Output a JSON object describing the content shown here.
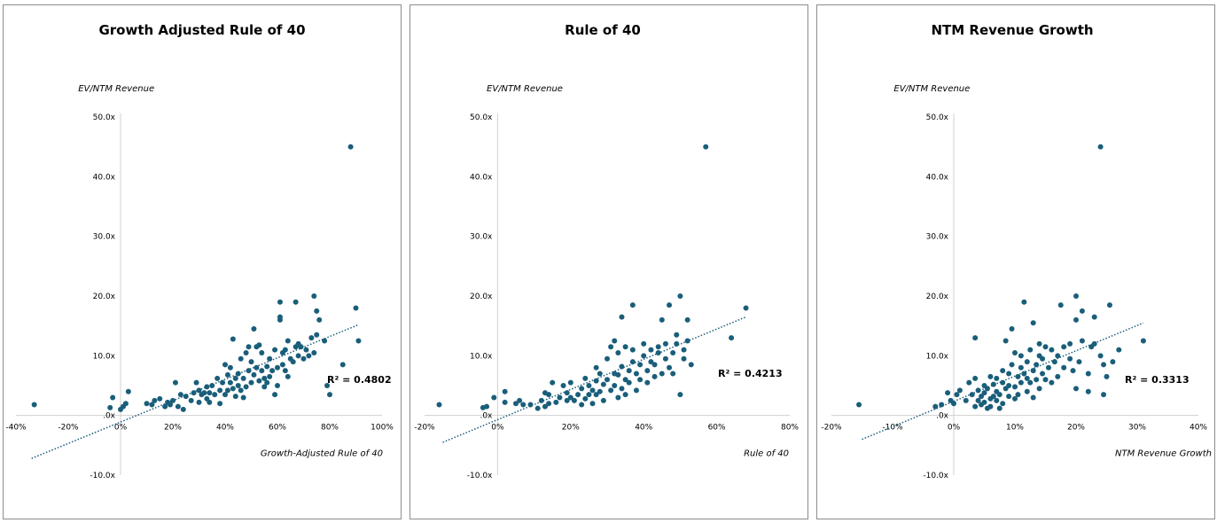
{
  "chart_data": [
    {
      "type": "scatter",
      "title": "Growth Adjusted Rule of 40",
      "ylabel": "EV/NTM Revenue",
      "xlabel": "Growth-Adjusted Rule of 40",
      "xlim": [
        -40,
        100
      ],
      "ylim": [
        -10,
        50
      ],
      "xticks": [
        "-40%",
        "-20%",
        "0%",
        "20%",
        "40%",
        "60%",
        "80%",
        "100%"
      ],
      "yticks": [
        "-10.0x",
        ".0x",
        "10.0x",
        "20.0x",
        "30.0x",
        "40.0x",
        "50.0x"
      ],
      "r2_label": "R² = 0.4802",
      "trendline": {
        "x1": -34,
        "y1": -7.2,
        "x2": 91,
        "y2": 15.2
      },
      "marker_color": "#1a5e7a",
      "points": [
        [
          -33,
          1.8
        ],
        [
          -4,
          1.3
        ],
        [
          -3,
          3
        ],
        [
          0,
          1
        ],
        [
          1,
          1.5
        ],
        [
          2,
          2
        ],
        [
          3,
          4
        ],
        [
          10,
          2
        ],
        [
          12,
          1.8
        ],
        [
          13,
          2.5
        ],
        [
          15,
          2.8
        ],
        [
          17,
          1.5
        ],
        [
          18,
          2.2
        ],
        [
          19,
          1.8
        ],
        [
          20,
          2.5
        ],
        [
          21,
          5.5
        ],
        [
          22,
          1.5
        ],
        [
          23,
          3.5
        ],
        [
          24,
          1
        ],
        [
          25,
          3.2
        ],
        [
          27,
          2.5
        ],
        [
          28,
          3.8
        ],
        [
          29,
          5.5
        ],
        [
          30,
          2.2
        ],
        [
          30,
          4.2
        ],
        [
          31,
          3.5
        ],
        [
          32,
          3.8
        ],
        [
          33,
          2.8
        ],
        [
          33,
          4.8
        ],
        [
          34,
          2.2
        ],
        [
          34,
          3.8
        ],
        [
          35,
          5
        ],
        [
          36,
          3.5
        ],
        [
          37,
          6.2
        ],
        [
          38,
          2
        ],
        [
          38,
          4.2
        ],
        [
          39,
          5.5
        ],
        [
          40,
          8.5
        ],
        [
          40,
          3.5
        ],
        [
          41,
          4.2
        ],
        [
          41,
          6.8
        ],
        [
          42,
          5.5
        ],
        [
          42,
          8
        ],
        [
          43,
          12.8
        ],
        [
          43,
          4.5
        ],
        [
          44,
          6.2
        ],
        [
          44,
          3.2
        ],
        [
          45,
          5
        ],
        [
          45,
          7
        ],
        [
          46,
          9.5
        ],
        [
          46,
          4.2
        ],
        [
          47,
          3
        ],
        [
          47,
          6.2
        ],
        [
          48,
          10.5
        ],
        [
          48,
          4.8
        ],
        [
          49,
          7.5
        ],
        [
          49,
          11.5
        ],
        [
          50,
          5.5
        ],
        [
          50,
          9
        ],
        [
          51,
          14.5
        ],
        [
          51,
          6.8
        ],
        [
          52,
          8
        ],
        [
          52,
          11.5
        ],
        [
          53,
          11.8
        ],
        [
          53,
          5.8
        ],
        [
          54,
          7.5
        ],
        [
          54,
          10.5
        ],
        [
          55,
          4.8
        ],
        [
          55,
          6.2
        ],
        [
          56,
          5.5
        ],
        [
          56,
          8.2
        ],
        [
          57,
          9.5
        ],
        [
          57,
          6.5
        ],
        [
          58,
          7.5
        ],
        [
          59,
          11
        ],
        [
          59,
          3.5
        ],
        [
          60,
          5
        ],
        [
          60,
          8
        ],
        [
          61,
          16
        ],
        [
          61,
          19
        ],
        [
          61,
          16.5
        ],
        [
          62,
          10.5
        ],
        [
          62,
          8.5
        ],
        [
          63,
          7.5
        ],
        [
          63,
          11
        ],
        [
          64,
          12.5
        ],
        [
          64,
          6.5
        ],
        [
          65,
          9.5
        ],
        [
          66,
          9
        ],
        [
          67,
          11.5
        ],
        [
          67,
          19
        ],
        [
          68,
          10
        ],
        [
          68,
          12
        ],
        [
          69,
          11.5
        ],
        [
          70,
          9.5
        ],
        [
          71,
          11
        ],
        [
          72,
          10
        ],
        [
          73,
          13
        ],
        [
          74,
          10.5
        ],
        [
          74,
          20
        ],
        [
          75,
          17.5
        ],
        [
          75,
          13.5
        ],
        [
          76,
          16
        ],
        [
          78,
          12.5
        ],
        [
          79,
          5
        ],
        [
          80,
          3.5
        ],
        [
          85,
          8.5
        ],
        [
          88,
          45
        ],
        [
          90,
          18
        ],
        [
          91,
          12.5
        ]
      ]
    },
    {
      "type": "scatter",
      "title": "Rule of 40",
      "ylabel": "EV/NTM Revenue",
      "xlabel": "Rule of 40",
      "xlim": [
        -20,
        80
      ],
      "ylim": [
        -10,
        50
      ],
      "xticks": [
        "-20%",
        "0%",
        "20%",
        "40%",
        "60%",
        "80%"
      ],
      "yticks": [
        "-10.0x",
        ".0x",
        "10.0x",
        "20.0x",
        "30.0x",
        "40.0x",
        "50.0x"
      ],
      "r2_label": "R² = 0.4213",
      "trendline": {
        "x1": -15,
        "y1": -4.5,
        "x2": 68,
        "y2": 16.5
      },
      "marker_color": "#1a5e7a",
      "points": [
        [
          -16,
          1.8
        ],
        [
          -4,
          1.3
        ],
        [
          -3,
          1.5
        ],
        [
          -1,
          3
        ],
        [
          2,
          2.2
        ],
        [
          2,
          4
        ],
        [
          5,
          2
        ],
        [
          6,
          2.5
        ],
        [
          7,
          1.8
        ],
        [
          9,
          1.8
        ],
        [
          11,
          1.2
        ],
        [
          12,
          2.5
        ],
        [
          13,
          1.5
        ],
        [
          13,
          3.8
        ],
        [
          14,
          2
        ],
        [
          14,
          3.5
        ],
        [
          15,
          5.5
        ],
        [
          16,
          2.2
        ],
        [
          17,
          3
        ],
        [
          18,
          5
        ],
        [
          19,
          2.5
        ],
        [
          19,
          3.8
        ],
        [
          20,
          3
        ],
        [
          20,
          5.5
        ],
        [
          21,
          2.5
        ],
        [
          22,
          3.5
        ],
        [
          23,
          1.8
        ],
        [
          23,
          4.5
        ],
        [
          24,
          2.8
        ],
        [
          24,
          6.2
        ],
        [
          25,
          3.5
        ],
        [
          25,
          5
        ],
        [
          26,
          2
        ],
        [
          26,
          4.2
        ],
        [
          27,
          8
        ],
        [
          27,
          3.5
        ],
        [
          27,
          5.8
        ],
        [
          28,
          7
        ],
        [
          28,
          4
        ],
        [
          29,
          2.5
        ],
        [
          29,
          5.2
        ],
        [
          30,
          9.5
        ],
        [
          30,
          6
        ],
        [
          31,
          4.2
        ],
        [
          31,
          11.5
        ],
        [
          32,
          7
        ],
        [
          32,
          5
        ],
        [
          32,
          12.5
        ],
        [
          33,
          3
        ],
        [
          33,
          6.8
        ],
        [
          33,
          10.5
        ],
        [
          34,
          4.5
        ],
        [
          34,
          8.2
        ],
        [
          34,
          16.5
        ],
        [
          35,
          6
        ],
        [
          35,
          3.5
        ],
        [
          35,
          11.5
        ],
        [
          36,
          7.5
        ],
        [
          36,
          5.5
        ],
        [
          37,
          9
        ],
        [
          37,
          18.5
        ],
        [
          37,
          11
        ],
        [
          38,
          7
        ],
        [
          38,
          4.2
        ],
        [
          39,
          8.5
        ],
        [
          39,
          6
        ],
        [
          40,
          10
        ],
        [
          40,
          12
        ],
        [
          41,
          7.5
        ],
        [
          41,
          5.5
        ],
        [
          42,
          9
        ],
        [
          42,
          11
        ],
        [
          43,
          6.5
        ],
        [
          43,
          8.5
        ],
        [
          44,
          10.5
        ],
        [
          44,
          11.5
        ],
        [
          45,
          16
        ],
        [
          45,
          7
        ],
        [
          46,
          9.5
        ],
        [
          46,
          12
        ],
        [
          47,
          8
        ],
        [
          47,
          18.5
        ],
        [
          48,
          10.5
        ],
        [
          48,
          7
        ],
        [
          49,
          12
        ],
        [
          49,
          13.5
        ],
        [
          50,
          20
        ],
        [
          50,
          3.5
        ],
        [
          51,
          11
        ],
        [
          51,
          9.5
        ],
        [
          52,
          16
        ],
        [
          52,
          12.5
        ],
        [
          53,
          8.5
        ],
        [
          57,
          45
        ],
        [
          64,
          13
        ],
        [
          68,
          18
        ]
      ]
    },
    {
      "type": "scatter",
      "title": "NTM Revenue Growth",
      "ylabel": "EV/NTM Revenue",
      "xlabel": "NTM Revenue Growth",
      "xlim": [
        -20,
        40
      ],
      "ylim": [
        -10,
        50
      ],
      "xticks": [
        "-20%",
        "-10%",
        "0%",
        "10%",
        "20%",
        "30%",
        "40%"
      ],
      "yticks": [
        "-10.0x",
        ".0x",
        "10.0x",
        "20.0x",
        "30.0x",
        "40.0x",
        "50.0x"
      ],
      "r2_label": "R² = 0.3313",
      "trendline": {
        "x1": -15,
        "y1": -4,
        "x2": 31,
        "y2": 15.5
      },
      "marker_color": "#1a5e7a",
      "points": [
        [
          -15.5,
          1.8
        ],
        [
          -3,
          1.5
        ],
        [
          -2,
          1.8
        ],
        [
          -1,
          3.8
        ],
        [
          -0.5,
          2.5
        ],
        [
          0,
          2
        ],
        [
          0.5,
          3.5
        ],
        [
          1,
          4.2
        ],
        [
          2,
          2.5
        ],
        [
          2.5,
          5.5
        ],
        [
          3,
          3.5
        ],
        [
          3.5,
          13
        ],
        [
          3.5,
          6.2
        ],
        [
          3.5,
          1.5
        ],
        [
          4,
          2.5
        ],
        [
          4,
          4.2
        ],
        [
          4.5,
          1.8
        ],
        [
          4.5,
          3.2
        ],
        [
          5,
          3.8
        ],
        [
          5,
          2.2
        ],
        [
          5,
          5
        ],
        [
          5.5,
          1.2
        ],
        [
          5.5,
          4.5
        ],
        [
          6,
          2.8
        ],
        [
          6,
          6.5
        ],
        [
          6,
          1.5
        ],
        [
          6.5,
          3.2
        ],
        [
          6.5,
          5.2
        ],
        [
          7,
          2.5
        ],
        [
          7,
          4
        ],
        [
          7,
          6.2
        ],
        [
          7.5,
          1.2
        ],
        [
          7.5,
          3.5
        ],
        [
          8,
          5.5
        ],
        [
          8,
          2
        ],
        [
          8,
          7.5
        ],
        [
          8.5,
          4.5
        ],
        [
          8.5,
          12.5
        ],
        [
          9,
          5
        ],
        [
          9,
          3.2
        ],
        [
          9,
          7
        ],
        [
          9.5,
          14.5
        ],
        [
          9.5,
          8.5
        ],
        [
          10,
          10.5
        ],
        [
          10,
          4.8
        ],
        [
          10,
          2.8
        ],
        [
          10.5,
          6.5
        ],
        [
          10.5,
          3.5
        ],
        [
          11,
          8
        ],
        [
          11,
          5.5
        ],
        [
          11,
          10
        ],
        [
          11.5,
          7
        ],
        [
          11.5,
          19
        ],
        [
          12,
          4
        ],
        [
          12,
          6.2
        ],
        [
          12,
          9
        ],
        [
          12.5,
          5.5
        ],
        [
          12.5,
          11
        ],
        [
          13,
          7.5
        ],
        [
          13,
          15.5
        ],
        [
          13,
          3
        ],
        [
          13.5,
          8.5
        ],
        [
          13.5,
          6
        ],
        [
          14,
          10
        ],
        [
          14,
          4.5
        ],
        [
          14,
          12
        ],
        [
          14.5,
          7
        ],
        [
          14.5,
          9.5
        ],
        [
          15,
          11.5
        ],
        [
          15,
          6
        ],
        [
          15.5,
          8
        ],
        [
          16,
          11
        ],
        [
          16,
          5.5
        ],
        [
          16.5,
          9
        ],
        [
          17,
          6.5
        ],
        [
          17,
          10
        ],
        [
          17.5,
          18.5
        ],
        [
          18,
          11.5
        ],
        [
          18,
          8
        ],
        [
          19,
          9.5
        ],
        [
          19,
          12
        ],
        [
          19.5,
          7.5
        ],
        [
          20,
          4.5
        ],
        [
          20,
          20
        ],
        [
          20,
          16
        ],
        [
          20.5,
          9
        ],
        [
          21,
          17.5
        ],
        [
          21,
          12.5
        ],
        [
          22,
          7
        ],
        [
          22,
          4
        ],
        [
          22.5,
          11.5
        ],
        [
          23,
          16.5
        ],
        [
          23,
          12
        ],
        [
          24,
          45
        ],
        [
          24,
          10
        ],
        [
          24.5,
          8.5
        ],
        [
          24.5,
          3.5
        ],
        [
          25,
          6.5
        ],
        [
          25.5,
          18.5
        ],
        [
          26,
          9
        ],
        [
          27,
          11
        ],
        [
          31,
          12.5
        ]
      ]
    }
  ]
}
